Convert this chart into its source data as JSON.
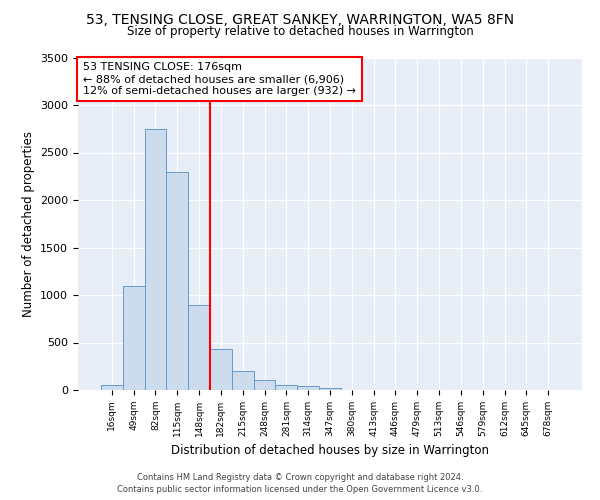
{
  "title": "53, TENSING CLOSE, GREAT SANKEY, WARRINGTON, WA5 8FN",
  "subtitle": "Size of property relative to detached houses in Warrington",
  "xlabel": "Distribution of detached houses by size in Warrington",
  "ylabel": "Number of detached properties",
  "bar_color": "#ccdcec",
  "bar_edge_color": "#6699cc",
  "background_color": "#e8eef8",
  "grid_color": "#ffffff",
  "categories": [
    "16sqm",
    "49sqm",
    "82sqm",
    "115sqm",
    "148sqm",
    "182sqm",
    "215sqm",
    "248sqm",
    "281sqm",
    "314sqm",
    "347sqm",
    "380sqm",
    "413sqm",
    "446sqm",
    "479sqm",
    "513sqm",
    "546sqm",
    "579sqm",
    "612sqm",
    "645sqm",
    "678sqm"
  ],
  "values": [
    50,
    1100,
    2750,
    2300,
    900,
    430,
    200,
    105,
    55,
    40,
    25,
    0,
    0,
    0,
    0,
    0,
    0,
    0,
    0,
    0,
    0
  ],
  "property_label": "53 TENSING CLOSE: 176sqm",
  "annotation_line1": "← 88% of detached houses are smaller (6,906)",
  "annotation_line2": "12% of semi-detached houses are larger (932) →",
  "vline_bin_index": 5,
  "ylim": [
    0,
    3500
  ],
  "yticks": [
    0,
    500,
    1000,
    1500,
    2000,
    2500,
    3000,
    3500
  ],
  "footer1": "Contains HM Land Registry data © Crown copyright and database right 2024.",
  "footer2": "Contains public sector information licensed under the Open Government Licence v3.0."
}
